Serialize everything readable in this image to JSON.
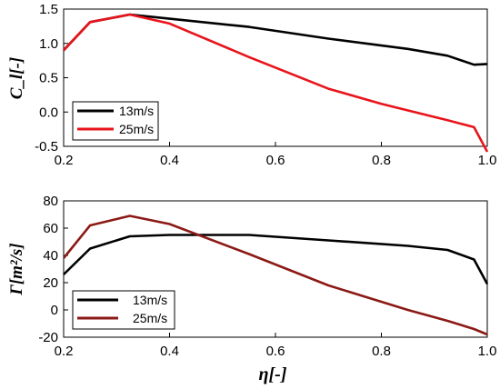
{
  "chart_data": [
    {
      "type": "line",
      "ylabel": "C_l[-]",
      "xlabel": "",
      "xlim": [
        0.2,
        1.0
      ],
      "ylim": [
        -0.5,
        1.5
      ],
      "xticks": [
        "0.2",
        "0.4",
        "0.6",
        "0.8",
        "1.0"
      ],
      "yticks": [
        "-0.5",
        "0.0",
        "0.5",
        "1.0",
        "1.5"
      ],
      "legend_position": "bottom-left",
      "grid": false,
      "series": [
        {
          "name": "13m/s",
          "color": "#000000",
          "x": [
            0.2,
            0.25,
            0.325,
            0.4,
            0.55,
            0.7,
            0.85,
            0.925,
            0.975,
            1.0
          ],
          "y": [
            0.9,
            1.31,
            1.42,
            1.36,
            1.24,
            1.07,
            0.92,
            0.82,
            0.69,
            0.7
          ]
        },
        {
          "name": "25m/s",
          "color": "#e8141b",
          "x": [
            0.2,
            0.25,
            0.325,
            0.4,
            0.55,
            0.7,
            0.8,
            0.925,
            0.975,
            1.0
          ],
          "y": [
            0.9,
            1.31,
            1.42,
            1.29,
            0.8,
            0.34,
            0.12,
            -0.12,
            -0.22,
            -0.58
          ]
        }
      ]
    },
    {
      "type": "line",
      "ylabel": "Γ[m²/s]",
      "xlabel": "η[-]",
      "xlim": [
        0.2,
        1.0
      ],
      "ylim": [
        -20,
        80
      ],
      "xticks": [
        "0.2",
        "0.4",
        "0.6",
        "0.8",
        "1.0"
      ],
      "yticks": [
        "-20",
        "0",
        "20",
        "40",
        "60",
        "80"
      ],
      "legend_position": "bottom-left",
      "grid": false,
      "series": [
        {
          "name": "13m/s",
          "color": "#000000",
          "x": [
            0.2,
            0.25,
            0.325,
            0.4,
            0.55,
            0.7,
            0.85,
            0.925,
            0.975,
            1.0
          ],
          "y": [
            26,
            45,
            54,
            55,
            55,
            51,
            47,
            44,
            37,
            19
          ]
        },
        {
          "name": "25m/s",
          "color": "#8b1a16",
          "x": [
            0.2,
            0.25,
            0.325,
            0.4,
            0.55,
            0.7,
            0.85,
            0.925,
            0.975,
            1.0
          ],
          "y": [
            38,
            62,
            69,
            63,
            41,
            18,
            0,
            -8,
            -14,
            -18
          ]
        }
      ]
    }
  ]
}
